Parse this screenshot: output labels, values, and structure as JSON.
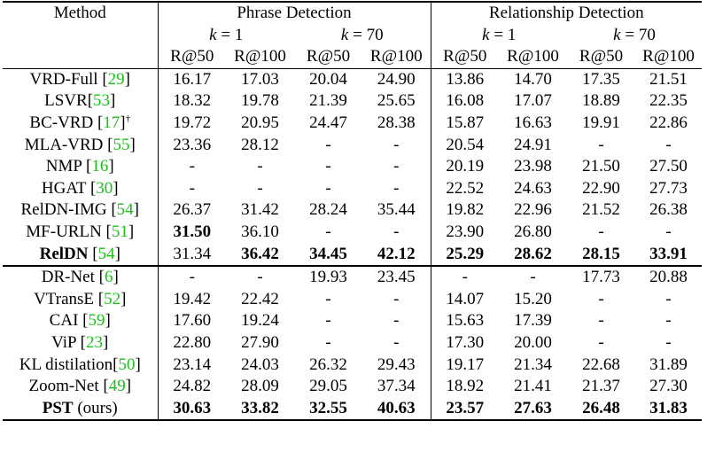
{
  "header": {
    "method": "Method",
    "groups": [
      "Phrase Detection",
      "Relationship Detection"
    ],
    "k_var": "k",
    "k_eq": " = ",
    "k_values": [
      "1",
      "70",
      "1",
      "70"
    ],
    "metrics": [
      "R@50",
      "R@100",
      "R@50",
      "R@100",
      "R@50",
      "R@100",
      "R@50",
      "R@100"
    ]
  },
  "group1": [
    {
      "name": "VRD-Full ",
      "cite": "29",
      "sup": "",
      "suffix": "",
      "bold_name": false,
      "values": [
        "16.17",
        "17.03",
        "20.04",
        "24.90",
        "13.86",
        "14.70",
        "17.35",
        "21.51"
      ],
      "bold": []
    },
    {
      "name": "LSVR",
      "cite": "53",
      "sup": "",
      "suffix": "",
      "bold_name": false,
      "values": [
        "18.32",
        "19.78",
        "21.39",
        "25.65",
        "16.08",
        "17.07",
        "18.89",
        "22.35"
      ],
      "bold": []
    },
    {
      "name": "BC-VRD ",
      "cite": "17",
      "sup": "†",
      "suffix": "",
      "bold_name": false,
      "values": [
        "19.72",
        "20.95",
        "24.47",
        "28.38",
        "15.87",
        "16.63",
        "19.91",
        "22.86"
      ],
      "bold": []
    },
    {
      "name": "MLA-VRD ",
      "cite": "55",
      "sup": "",
      "suffix": "",
      "bold_name": false,
      "values": [
        "23.36",
        "28.12",
        "-",
        "-",
        "20.54",
        "24.91",
        "-",
        "-"
      ],
      "bold": []
    },
    {
      "name": "NMP ",
      "cite": "16",
      "sup": "",
      "suffix": "",
      "bold_name": false,
      "values": [
        "-",
        "-",
        "-",
        "-",
        "20.19",
        "23.98",
        "21.50",
        "27.50"
      ],
      "bold": []
    },
    {
      "name": "HGAT ",
      "cite": "30",
      "sup": "",
      "suffix": "",
      "bold_name": false,
      "values": [
        "-",
        "-",
        "-",
        "-",
        "22.52",
        "24.63",
        "22.90",
        "27.73"
      ],
      "bold": []
    },
    {
      "name": "RelDN-IMG ",
      "cite": "54",
      "sup": "",
      "suffix": "",
      "bold_name": false,
      "values": [
        "26.37",
        "31.42",
        "28.24",
        "35.44",
        "19.82",
        "22.96",
        "21.52",
        "26.38"
      ],
      "bold": []
    },
    {
      "name": "MF-URLN ",
      "cite": "51",
      "sup": "",
      "suffix": "",
      "bold_name": false,
      "values": [
        "31.50",
        "36.10",
        "-",
        "-",
        "23.90",
        "26.80",
        "-",
        "-"
      ],
      "bold": [
        0
      ]
    },
    {
      "name": "RelDN",
      "cite": "54",
      "sup": "",
      "suffix": "",
      "bold_name": true,
      "values": [
        "31.34",
        "36.42",
        "34.45",
        "42.12",
        "25.29",
        "28.62",
        "28.15",
        "33.91"
      ],
      "bold": [
        1,
        2,
        3,
        4,
        5,
        6,
        7
      ]
    }
  ],
  "group2": [
    {
      "name": "DR-Net ",
      "cite": "6",
      "sup": "",
      "suffix": "",
      "bold_name": false,
      "values": [
        "-",
        "-",
        "19.93",
        "23.45",
        "-",
        "-",
        "17.73",
        "20.88"
      ],
      "bold": []
    },
    {
      "name": "VTransE ",
      "cite": "52",
      "sup": "",
      "suffix": "",
      "bold_name": false,
      "values": [
        "19.42",
        "22.42",
        "-",
        "-",
        "14.07",
        "15.20",
        "-",
        "-"
      ],
      "bold": []
    },
    {
      "name": "CAI ",
      "cite": "59",
      "sup": "",
      "suffix": "",
      "bold_name": false,
      "values": [
        "17.60",
        "19.24",
        "-",
        "-",
        "15.63",
        "17.39",
        "-",
        "-"
      ],
      "bold": []
    },
    {
      "name": "ViP ",
      "cite": "23",
      "sup": "",
      "suffix": "",
      "bold_name": false,
      "values": [
        "22.80",
        "27.90",
        "-",
        "-",
        "17.30",
        "20.00",
        "-",
        "-"
      ],
      "bold": []
    },
    {
      "name": "KL distilation",
      "cite": "50",
      "sup": "",
      "suffix": "",
      "bold_name": false,
      "values": [
        "23.14",
        "24.03",
        "26.32",
        "29.43",
        "19.17",
        "21.34",
        "22.68",
        "31.89"
      ],
      "bold": []
    },
    {
      "name": "Zoom-Net ",
      "cite": "49",
      "sup": "",
      "suffix": "",
      "bold_name": false,
      "values": [
        "24.82",
        "28.09",
        "29.05",
        "37.34",
        "18.92",
        "21.41",
        "21.37",
        "27.30"
      ],
      "bold": []
    },
    {
      "name": "PST",
      "cite": "",
      "sup": "",
      "suffix": " (ours)",
      "bold_name": true,
      "values": [
        "30.63",
        "33.82",
        "32.55",
        "40.63",
        "23.57",
        "27.63",
        "26.48",
        "31.83"
      ],
      "bold": [
        0,
        1,
        2,
        3,
        4,
        5,
        6,
        7
      ]
    }
  ]
}
